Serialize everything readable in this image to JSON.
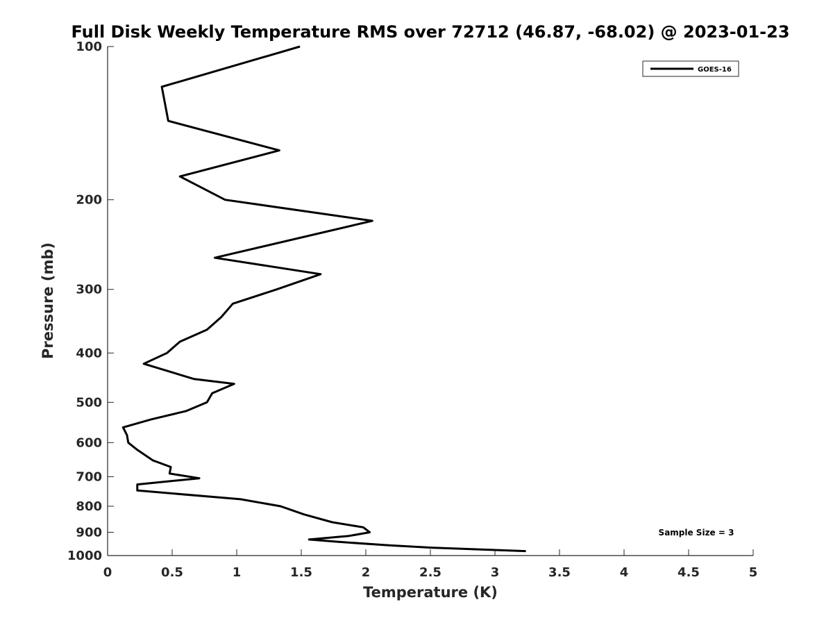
{
  "chart_data": {
    "type": "line",
    "title": "Full Disk Weekly Temperature RMS over 72712 (46.87, -68.02) @ 2023-01-23",
    "xlabel": "Temperature (K)",
    "ylabel": "Pressure (mb)",
    "xlim": [
      0,
      5
    ],
    "ylim": [
      1000,
      100
    ],
    "yscale": "log",
    "y_reversed": true,
    "grid": false,
    "legend_position": "top-right",
    "x_ticks": [
      "0",
      "0.5",
      "1",
      "1.5",
      "2",
      "2.5",
      "3",
      "3.5",
      "4",
      "4.5",
      "5"
    ],
    "x_tick_values": [
      0,
      0.5,
      1,
      1.5,
      2,
      2.5,
      3,
      3.5,
      4,
      4.5,
      5
    ],
    "y_ticks": [
      "100",
      "200",
      "300",
      "400",
      "500",
      "600",
      "700",
      "800",
      "900",
      "1000"
    ],
    "y_tick_values": [
      100,
      200,
      300,
      400,
      500,
      600,
      700,
      800,
      900,
      1000
    ],
    "series": [
      {
        "name": "GOES-16",
        "color": "#000000",
        "points": [
          [
            1.49,
            100
          ],
          [
            0.42,
            120
          ],
          [
            0.47,
            140
          ],
          [
            1.33,
            160
          ],
          [
            0.56,
            180
          ],
          [
            0.91,
            200
          ],
          [
            2.05,
            220
          ],
          [
            0.83,
            260
          ],
          [
            1.65,
            280
          ],
          [
            1.31,
            300
          ],
          [
            0.97,
            320
          ],
          [
            0.88,
            340
          ],
          [
            0.77,
            360
          ],
          [
            0.56,
            380
          ],
          [
            0.46,
            400
          ],
          [
            0.28,
            420
          ],
          [
            0.67,
            450
          ],
          [
            0.98,
            460
          ],
          [
            0.81,
            480
          ],
          [
            0.77,
            500
          ],
          [
            0.61,
            520
          ],
          [
            0.34,
            540
          ],
          [
            0.12,
            560
          ],
          [
            0.15,
            580
          ],
          [
            0.16,
            600
          ],
          [
            0.23,
            620
          ],
          [
            0.35,
            650
          ],
          [
            0.49,
            670
          ],
          [
            0.48,
            690
          ],
          [
            0.71,
            705
          ],
          [
            0.23,
            725
          ],
          [
            0.23,
            745
          ],
          [
            1.03,
            775
          ],
          [
            1.34,
            800
          ],
          [
            1.52,
            830
          ],
          [
            1.74,
            860
          ],
          [
            1.98,
            880
          ],
          [
            2.03,
            900
          ],
          [
            1.87,
            915
          ],
          [
            1.56,
            930
          ],
          [
            1.79,
            940
          ],
          [
            2.18,
            955
          ],
          [
            2.52,
            965
          ],
          [
            3.24,
            980
          ]
        ]
      }
    ],
    "annotations": [
      "Sample Size = 3"
    ]
  }
}
